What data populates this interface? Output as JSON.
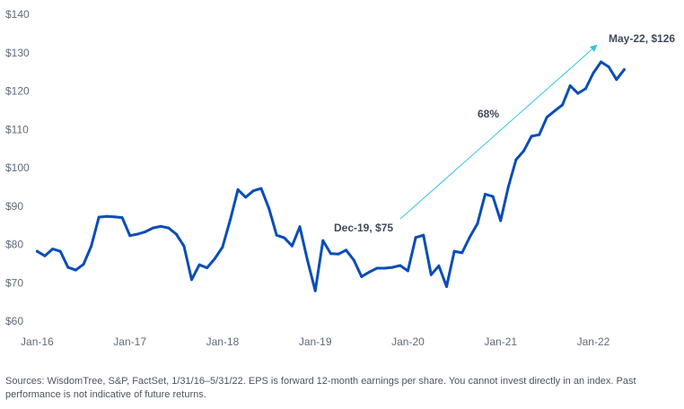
{
  "chart_data": {
    "type": "line",
    "title": "",
    "xlabel": "",
    "ylabel": "",
    "ylim": [
      60,
      140
    ],
    "yticks": [
      60,
      70,
      80,
      90,
      100,
      110,
      120,
      130,
      140
    ],
    "ytick_labels": [
      "$60",
      "$70",
      "$80",
      "$90",
      "$100",
      "$110",
      "$120",
      "$130",
      "$140"
    ],
    "xticks": [
      {
        "date": "2016-01",
        "label": "Jan-16"
      },
      {
        "date": "2017-01",
        "label": "Jan-17"
      },
      {
        "date": "2018-01",
        "label": "Jan-18"
      },
      {
        "date": "2019-01",
        "label": "Jan-19"
      },
      {
        "date": "2020-01",
        "label": "Jan-20"
      },
      {
        "date": "2021-01",
        "label": "Jan-21"
      },
      {
        "date": "2022-01",
        "label": "Jan-22"
      }
    ],
    "grid": false,
    "line_color": "#0a4db8",
    "arrow_color": "#36c3e0",
    "x": [
      "2016-01",
      "2016-02",
      "2016-03",
      "2016-04",
      "2016-05",
      "2016-06",
      "2016-07",
      "2016-08",
      "2016-09",
      "2016-10",
      "2016-11",
      "2016-12",
      "2017-01",
      "2017-02",
      "2017-03",
      "2017-04",
      "2017-05",
      "2017-06",
      "2017-07",
      "2017-08",
      "2017-09",
      "2017-10",
      "2017-11",
      "2017-12",
      "2018-01",
      "2018-02",
      "2018-03",
      "2018-04",
      "2018-05",
      "2018-06",
      "2018-07",
      "2018-08",
      "2018-09",
      "2018-10",
      "2018-11",
      "2018-12",
      "2019-01",
      "2019-02",
      "2019-03",
      "2019-04",
      "2019-05",
      "2019-06",
      "2019-07",
      "2019-08",
      "2019-09",
      "2019-10",
      "2019-11",
      "2019-12",
      "2020-01",
      "2020-02",
      "2020-03",
      "2020-04",
      "2020-05",
      "2020-06",
      "2020-07",
      "2020-08",
      "2020-09",
      "2020-10",
      "2020-11",
      "2020-12",
      "2021-01",
      "2021-02",
      "2021-03",
      "2021-04",
      "2021-05",
      "2021-06",
      "2021-07",
      "2021-08",
      "2021-09",
      "2021-10",
      "2021-11",
      "2021-12",
      "2022-01",
      "2022-02",
      "2022-03",
      "2022-04",
      "2022-05"
    ],
    "series": [
      {
        "values": [
          78.2,
          77.0,
          78.8,
          78.2,
          74.0,
          73.3,
          74.8,
          79.5,
          87.1,
          87.3,
          87.2,
          87.0,
          82.3,
          82.7,
          83.3,
          84.3,
          84.7,
          84.3,
          82.7,
          79.6,
          70.8,
          74.7,
          73.9,
          76.3,
          79.3,
          86.4,
          94.3,
          92.3,
          94.0,
          94.6,
          89.4,
          82.4,
          81.7,
          79.6,
          84.6,
          75.8,
          67.9,
          81.0,
          77.6,
          77.5,
          78.5,
          75.9,
          71.6,
          72.8,
          73.8,
          73.8,
          74.0,
          74.5,
          73.1,
          81.8,
          82.4,
          72.1,
          74.4,
          69.0,
          78.2,
          77.8,
          81.9,
          85.4,
          93.1,
          92.5,
          86.2,
          95.0,
          102.1,
          104.4,
          108.2,
          108.6,
          113.2,
          114.8,
          116.4,
          121.4,
          119.4,
          120.6,
          124.7,
          127.6,
          126.3,
          123.0,
          125.6
        ]
      }
    ],
    "annotations": {
      "start_label": "Dec-19, $75",
      "end_label": "May-22, $126",
      "change_label": "68%"
    }
  },
  "source_text": "Sources: WisdomTree, S&P, FactSet, 1/31/16–5/31/22. EPS is forward 12-month earnings per share. You cannot invest directly in an index. Past performance is not indicative of future returns."
}
